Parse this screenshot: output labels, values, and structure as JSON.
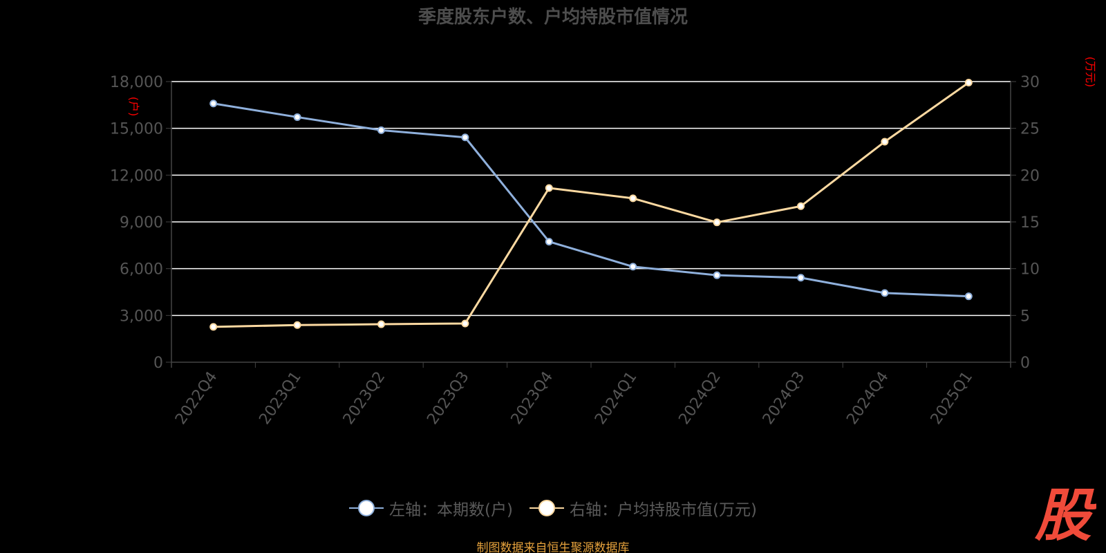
{
  "title": "季度股东户数、户均持股市值情况",
  "source_text": "制图数据来自恒生聚源数据库",
  "logo_char": "股",
  "colors": {
    "background": "#000000",
    "left_series": "#8fb0dc",
    "right_series": "#fcd9a1",
    "grid": "#ffffff",
    "axis": "#444444",
    "tick_text": "#555555",
    "unit_text": "#ff0000",
    "source_text": "#e6a23c",
    "logo": "#f04b3a"
  },
  "chart_data": {
    "type": "line",
    "categories": [
      "2022Q4",
      "2023Q1",
      "2023Q2",
      "2023Q3",
      "2023Q4",
      "2024Q1",
      "2024Q2",
      "2024Q3",
      "2024Q4",
      "2025Q1"
    ],
    "left_axis": {
      "unit": "(户)",
      "ylim": [
        0,
        18000
      ],
      "ticks": [
        "0",
        "3,000",
        "6,000",
        "9,000",
        "12,000",
        "15,000",
        "18,000"
      ]
    },
    "right_axis": {
      "unit": "(万元)",
      "ylim": [
        0,
        30
      ],
      "ticks": [
        "0",
        "5",
        "10",
        "15",
        "20",
        "25",
        "30"
      ]
    },
    "grid": true,
    "legend_position": "bottom",
    "series": [
      {
        "name": "左轴：本期数(户)",
        "axis": "left",
        "values": [
          16594,
          15719,
          14880,
          14420,
          7732,
          6129,
          5578,
          5419,
          4437,
          4226
        ]
      },
      {
        "name": "右轴：户均持股市值(万元)",
        "axis": "right",
        "values": [
          3.78,
          3.97,
          4.06,
          4.14,
          18.62,
          17.52,
          14.95,
          16.68,
          23.57,
          29.89
        ]
      }
    ]
  }
}
